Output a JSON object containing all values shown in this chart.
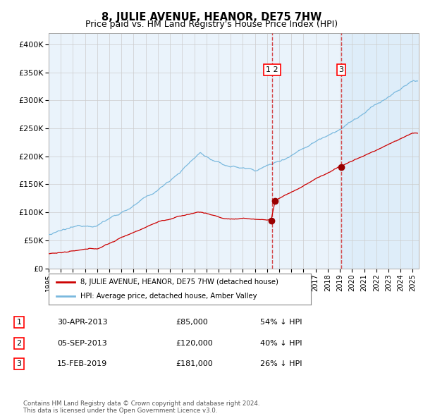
{
  "title": "8, JULIE AVENUE, HEANOR, DE75 7HW",
  "subtitle": "Price paid vs. HM Land Registry's House Price Index (HPI)",
  "title_fontsize": 10.5,
  "subtitle_fontsize": 9,
  "background_color": "#ffffff",
  "plot_bg_color": "#eaf3fb",
  "shade_color": "#d6eaf8",
  "ylim": [
    0,
    420000
  ],
  "yticks": [
    0,
    50000,
    100000,
    150000,
    200000,
    250000,
    300000,
    350000,
    400000
  ],
  "ytick_labels": [
    "£0",
    "£50K",
    "£100K",
    "£150K",
    "£200K",
    "£250K",
    "£300K",
    "£350K",
    "£400K"
  ],
  "xlim_start": 1995.0,
  "xlim_end": 2025.5,
  "hpi_color": "#7ab9de",
  "price_color": "#cc0000",
  "sale_marker_color": "#990000",
  "sale1_x": 2013.33,
  "sale1_y": 85000,
  "sale2_x": 2013.67,
  "sale2_y": 120000,
  "sale3_x": 2019.12,
  "sale3_y": 181000,
  "vline1_x": 2013.42,
  "vline2_x": 2019.12,
  "shade_start": 2019.12,
  "legend_label_price": "8, JULIE AVENUE, HEANOR, DE75 7HW (detached house)",
  "legend_label_hpi": "HPI: Average price, detached house, Amber Valley",
  "table_rows": [
    [
      "1",
      "30-APR-2013",
      "£85,000",
      "54% ↓ HPI"
    ],
    [
      "2",
      "05-SEP-2013",
      "£120,000",
      "40% ↓ HPI"
    ],
    [
      "3",
      "15-FEB-2019",
      "£181,000",
      "26% ↓ HPI"
    ]
  ],
  "footer_text": "Contains HM Land Registry data © Crown copyright and database right 2024.\nThis data is licensed under the Open Government Licence v3.0."
}
